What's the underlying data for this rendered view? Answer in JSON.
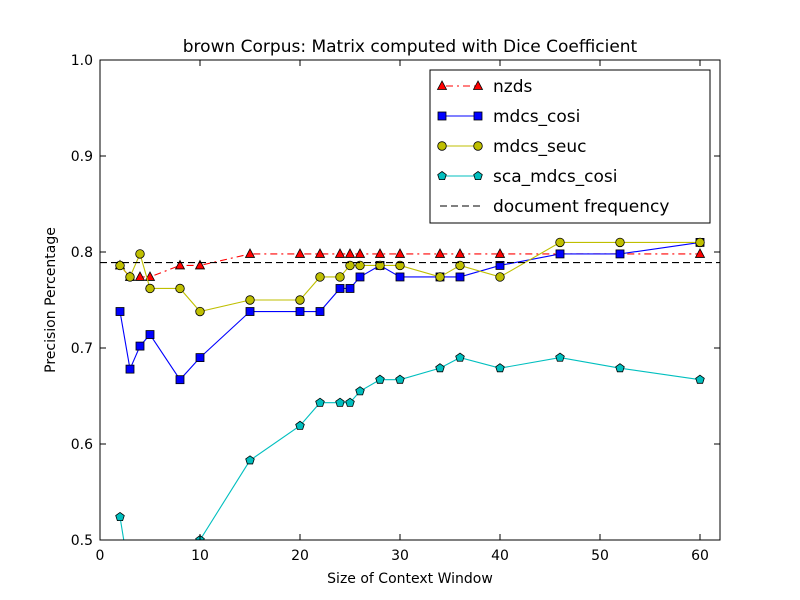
{
  "chart_data": {
    "type": "line",
    "title": "brown Corpus: Matrix computed with Dice Coefficient",
    "xlabel": "Size of Context Window",
    "ylabel": "Precision Percentage",
    "xlim": [
      0,
      62
    ],
    "ylim": [
      0.5,
      1.0
    ],
    "xticks": [
      0,
      10,
      20,
      30,
      40,
      50,
      60
    ],
    "yticks": [
      0.5,
      0.6,
      0.7,
      0.8,
      0.9,
      1.0
    ],
    "xtick_labels": [
      "0",
      "10",
      "20",
      "30",
      "40",
      "50",
      "60"
    ],
    "ytick_labels": [
      "0.5",
      "0.6",
      "0.7",
      "0.8",
      "0.9",
      "1.0"
    ],
    "legend_position": "top-right",
    "series": [
      {
        "name": "nzds",
        "color": "#ff0000",
        "marker": "triangle",
        "line_style": "dash-dot",
        "x": [
          2,
          3,
          4,
          5,
          8,
          10,
          15,
          20,
          22,
          24,
          25,
          26,
          28,
          30,
          34,
          36,
          40,
          60
        ],
        "y": [
          0.786,
          0.774,
          0.774,
          0.774,
          0.786,
          0.786,
          0.798,
          0.798,
          0.798,
          0.798,
          0.798,
          0.798,
          0.798,
          0.798,
          0.798,
          0.798,
          0.798,
          0.798
        ]
      },
      {
        "name": "mdcs_cosi",
        "color": "#0000ff",
        "marker": "square",
        "line_style": "solid",
        "x": [
          2,
          3,
          4,
          5,
          8,
          10,
          15,
          20,
          22,
          24,
          25,
          26,
          28,
          30,
          34,
          36,
          40,
          46,
          52,
          60
        ],
        "y": [
          0.738,
          0.678,
          0.702,
          0.714,
          0.667,
          0.69,
          0.738,
          0.738,
          0.738,
          0.762,
          0.762,
          0.774,
          0.786,
          0.774,
          0.774,
          0.774,
          0.786,
          0.798,
          0.798,
          0.81
        ]
      },
      {
        "name": "mdcs_seuc",
        "color": "#bfbf00",
        "marker": "circle",
        "line_style": "solid",
        "x": [
          2,
          3,
          4,
          5,
          8,
          10,
          15,
          20,
          22,
          24,
          25,
          26,
          28,
          30,
          34,
          36,
          40,
          46,
          52,
          60
        ],
        "y": [
          0.786,
          0.774,
          0.798,
          0.762,
          0.762,
          0.738,
          0.75,
          0.75,
          0.774,
          0.774,
          0.786,
          0.786,
          0.786,
          0.786,
          0.774,
          0.786,
          0.774,
          0.81,
          0.81,
          0.81
        ]
      },
      {
        "name": "sca_mdcs_cosi",
        "color": "#00bfbf",
        "marker": "pentagon",
        "line_style": "solid",
        "x": [
          2,
          3,
          10,
          15,
          20,
          22,
          24,
          25,
          26,
          28,
          30,
          34,
          36,
          40,
          46,
          52,
          60
        ],
        "y": [
          0.524,
          0.46,
          0.5,
          0.583,
          0.619,
          0.643,
          0.643,
          0.643,
          0.655,
          0.667,
          0.667,
          0.679,
          0.69,
          0.679,
          0.69,
          0.679,
          0.667
        ]
      },
      {
        "name": "document frequency",
        "color": "#000000",
        "marker": "none",
        "line_style": "dashed",
        "x": [
          0,
          62
        ],
        "y": [
          0.789,
          0.789
        ]
      }
    ]
  }
}
